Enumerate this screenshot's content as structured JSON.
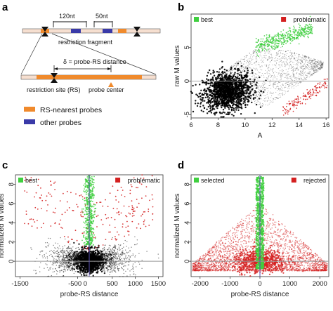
{
  "panel_labels": {
    "a": "a",
    "b": "b",
    "c": "c",
    "d": "d"
  },
  "colors": {
    "rs_nearest": "#f08a2c",
    "other_probe": "#3a3aa8",
    "black_points": "#000000",
    "best_green": "#3fcf3f",
    "problematic_red": "#d42020",
    "zero_line": "#9a9a9a",
    "vertical_line": "#5a4fb0",
    "fragment_bar": "#f6dfd0"
  },
  "diagram": {
    "dim_120nt": "120nt",
    "dim_50nt": "50nt",
    "restriction_fragment": "restriction fragment",
    "delta_label": "δ = probe-RS distance",
    "restriction_site": "restriction site (RS)",
    "probe_center": "probe center",
    "legend_rs_nearest": "RS-nearest probes",
    "legend_other": "other probes"
  },
  "chart_data": [
    {
      "panel": "b",
      "type": "scatter",
      "xlabel": "A",
      "ylabel": "raw M values",
      "xlim": [
        6,
        16.2
      ],
      "ylim": [
        -5.5,
        10
      ],
      "xticks": [
        "6",
        "8",
        "10",
        "12",
        "14",
        "16"
      ],
      "yticks": [
        "-5",
        "0",
        "5"
      ],
      "series": [
        {
          "name": "best",
          "color": "#3fcf3f"
        },
        {
          "name": "problematic",
          "color": "#d42020"
        }
      ],
      "hline": 0
    },
    {
      "panel": "c",
      "type": "scatter",
      "xlabel": "probe-RS distance",
      "ylabel": "normalized M values",
      "xlim": [
        -1600,
        1600
      ],
      "ylim": [
        -1.6,
        9
      ],
      "xticks": [
        "-1500",
        "-500 0",
        "500",
        "1000",
        "1500"
      ],
      "yticks": [
        "0",
        "2",
        "4",
        "6",
        "8"
      ],
      "series": [
        {
          "name": "best",
          "color": "#3fcf3f"
        },
        {
          "name": "problematic",
          "color": "#d42020"
        }
      ],
      "hline": 0,
      "vline": 0
    },
    {
      "panel": "d",
      "type": "scatter",
      "xlabel": "probe-RS distance",
      "ylabel": "normalized M values",
      "xlim": [
        -2300,
        2300
      ],
      "ylim": [
        -1.6,
        9
      ],
      "xticks": [
        "-2000",
        "-1000",
        "0",
        "1000",
        "2000"
      ],
      "yticks": [
        "0",
        "2",
        "4",
        "6",
        "8"
      ],
      "series": [
        {
          "name": "selected",
          "color": "#3fcf3f"
        },
        {
          "name": "rejected",
          "color": "#d42020"
        }
      ],
      "hline": 0,
      "vline": 0
    }
  ]
}
